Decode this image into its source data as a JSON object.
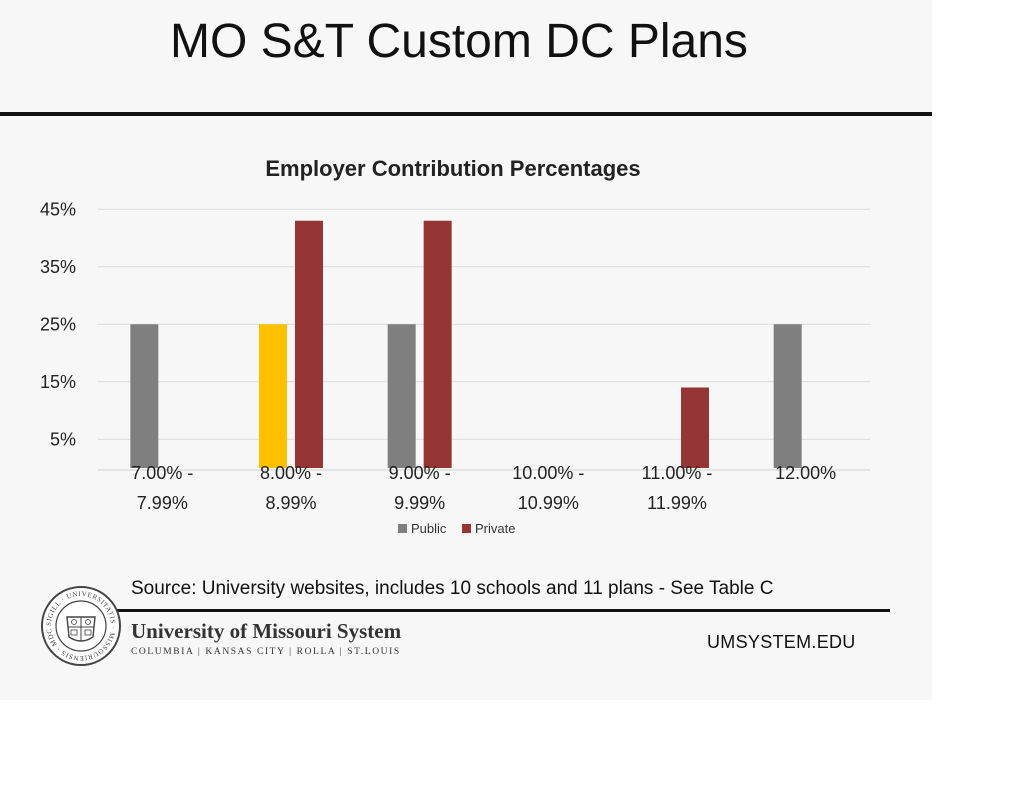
{
  "slide": {
    "title": "MO S&T Custom DC Plans",
    "source": "Source: University websites, includes 10 schools and 11 plans - See Table C"
  },
  "footer": {
    "org_name": "University of Missouri System",
    "campuses": "COLUMBIA | KANSAS CITY | ROLLA | ST.LOUIS",
    "website": "UMSYSTEM.EDU",
    "seal_text": "SIGILL · UNIVERSITATIS · MISSOURIENSIS · MDCCCXXXIX"
  },
  "chart_data": {
    "type": "bar",
    "title": "Employer Contribution Percentages",
    "categories": [
      [
        "7.00% -",
        "7.99%"
      ],
      [
        "8.00% -",
        "8.99%"
      ],
      [
        "9.00% -",
        "9.99%"
      ],
      [
        "10.00% -",
        "10.99%"
      ],
      [
        "11.00% -",
        "11.99%"
      ],
      [
        "12.00%"
      ]
    ],
    "series": [
      {
        "name": "Public",
        "color": "#7f7f7f",
        "values": [
          25,
          25,
          25,
          0,
          0,
          25
        ]
      },
      {
        "name": "Private",
        "color": "#963634",
        "values": [
          0,
          43,
          43,
          0,
          14,
          0
        ]
      }
    ],
    "highlight": {
      "series": 0,
      "category": 1,
      "color": "#ffc000"
    },
    "yticks": [
      "45%",
      "35%",
      "25%",
      "15%",
      "5%"
    ],
    "ytick_values": [
      45,
      35,
      25,
      15,
      5
    ],
    "ylim": [
      0,
      48
    ],
    "grid": true,
    "legend": "bottom"
  }
}
